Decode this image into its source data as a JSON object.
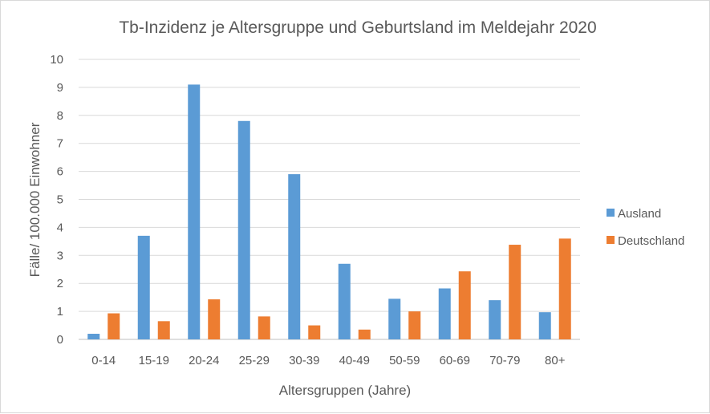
{
  "chart_data": {
    "type": "bar",
    "title": "Tb-Inzidenz je Altersgruppe und Geburtsland im Meldejahr 2020",
    "xlabel": "Altersgruppen (Jahre)",
    "ylabel": "Fälle/ 100.000 Einwohner",
    "ylim": [
      0,
      10
    ],
    "yticks": [
      "0",
      "1",
      "2",
      "3",
      "4",
      "5",
      "6",
      "7",
      "8",
      "9",
      "10"
    ],
    "grid": true,
    "legend_position": "right",
    "categories": [
      "0-14",
      "15-19",
      "20-24",
      "25-29",
      "30-39",
      "40-49",
      "50-59",
      "60-69",
      "70-79",
      "80+"
    ],
    "series": [
      {
        "name": "Ausland",
        "color": "#5b9bd5",
        "values": [
          0.2,
          3.7,
          9.1,
          7.8,
          5.9,
          2.7,
          1.45,
          1.82,
          1.4,
          0.97
        ]
      },
      {
        "name": "Deutschland",
        "color": "#ed7d31",
        "values": [
          0.93,
          0.65,
          1.43,
          0.82,
          0.5,
          0.35,
          1.0,
          2.43,
          3.38,
          3.6
        ]
      }
    ]
  }
}
